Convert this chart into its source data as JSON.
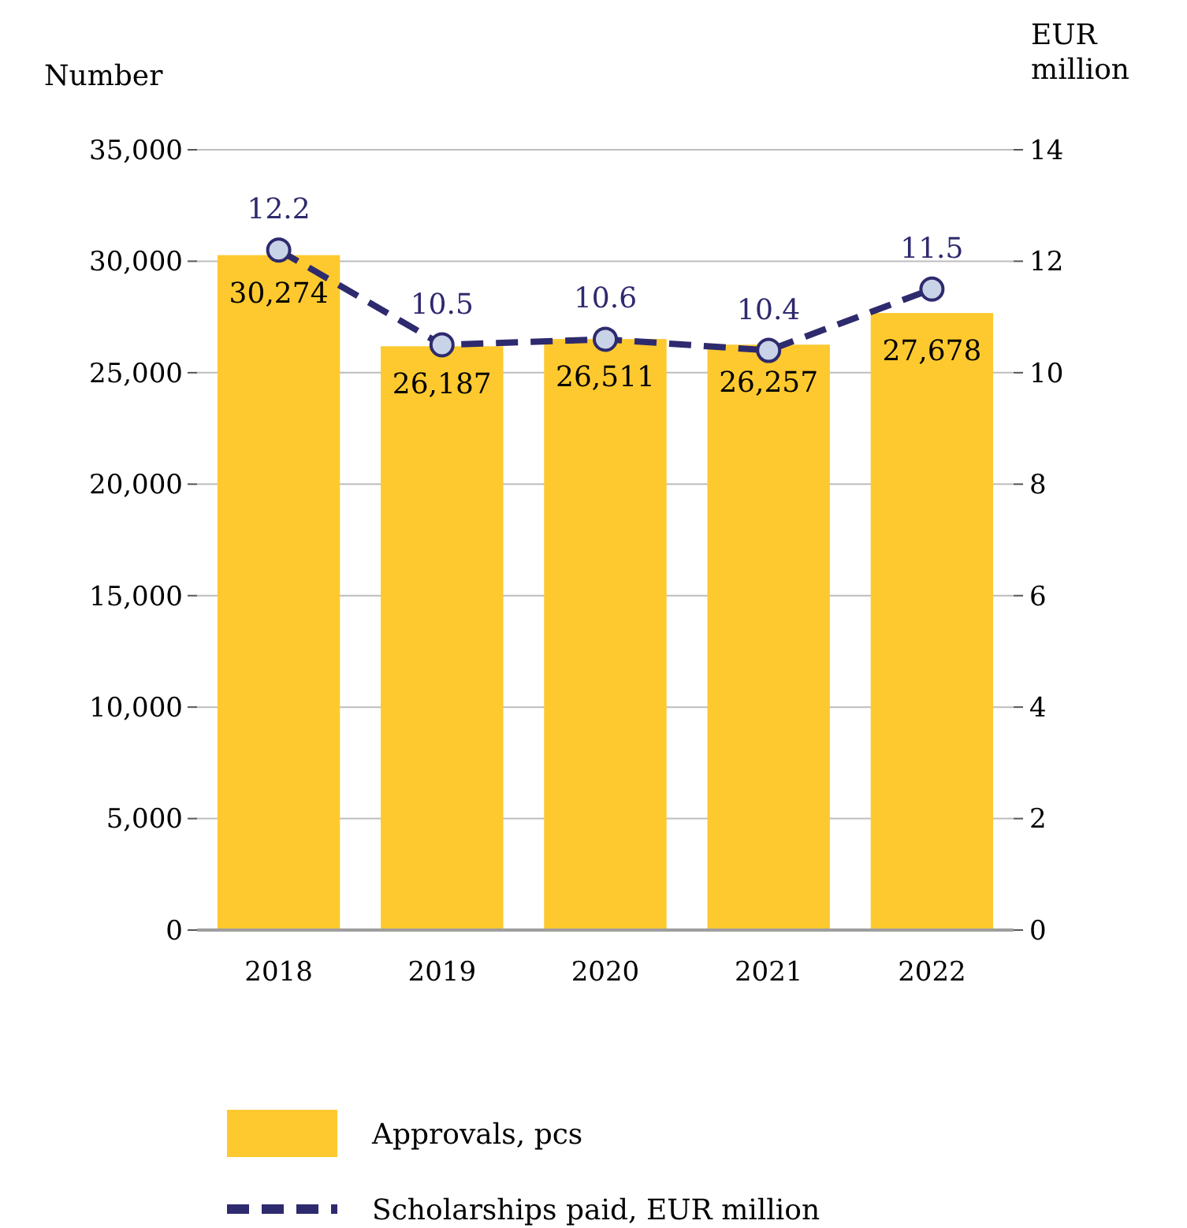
{
  "chart_data": {
    "type": "bar",
    "ylabel": "Number",
    "y2label": "EUR million",
    "categories": [
      "2018",
      "2019",
      "2020",
      "2021",
      "2022"
    ],
    "series": [
      {
        "name": "Approvals, pcs",
        "color": "#fdc92f",
        "values": [
          30274,
          26187,
          26511,
          26257,
          27678
        ],
        "value_labels": [
          "30,274",
          "26,187",
          "26,511",
          "26,257",
          "27,678"
        ]
      },
      {
        "name": "Scholarships paid, EUR million",
        "type": "line",
        "axis": "y2",
        "color": "#2e2a6e",
        "values": [
          12.2,
          10.5,
          10.6,
          10.4,
          11.5
        ],
        "value_labels": [
          "12.2",
          "10.5",
          "10.6",
          "10.4",
          "11.5"
        ],
        "marker": "circle",
        "line_style": "dashed"
      }
    ],
    "ylim": [
      0,
      35000
    ],
    "yticks": [
      0,
      {
        "value": 5000,
        "label": "5,000"
      },
      {
        "value": 10000,
        "label": "10,000"
      },
      {
        "value": 15000,
        "label": "15,000"
      },
      {
        "value": 20000,
        "label": "20,000"
      },
      {
        "value": 25000,
        "label": "25,000"
      },
      {
        "value": 30000,
        "label": "30,000"
      },
      {
        "value": 35000,
        "label": "35,000"
      }
    ],
    "y2lim": [
      0,
      14
    ],
    "y2ticks": [
      0,
      2,
      4,
      6,
      8,
      10,
      12,
      14
    ],
    "grid": "y",
    "legend": "bottom"
  }
}
